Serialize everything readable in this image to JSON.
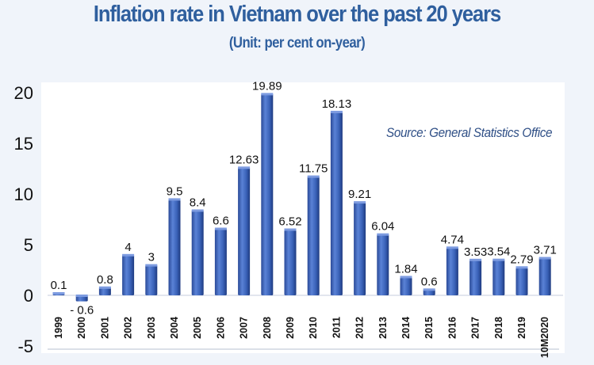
{
  "chart_data": {
    "type": "bar",
    "title": "Inflation rate in Vietnam over the past 20 years",
    "subtitle": "(Unit: per cent on-year)",
    "source": "Source: General Statistics Office",
    "xlabel": "",
    "ylabel": "",
    "ylim": [
      -5,
      20
    ],
    "yticks": [
      20,
      15,
      10,
      5,
      0,
      -5
    ],
    "grid": false,
    "categories": [
      "1999",
      "2000",
      "2001",
      "2002",
      "2003",
      "2004",
      "2005",
      "2006",
      "2007",
      "2008",
      "2009",
      "2010",
      "2011",
      "2012",
      "2013",
      "2014",
      "2015",
      "2016",
      "2017",
      "2018",
      "2019",
      "10M2020"
    ],
    "values": [
      0.1,
      -0.6,
      0.8,
      4,
      3,
      9.5,
      8.4,
      6.6,
      12.63,
      19.89,
      6.52,
      11.75,
      18.13,
      9.21,
      6.04,
      1.84,
      0.6,
      4.74,
      3.53,
      3.54,
      2.79,
      3.71
    ],
    "value_labels": [
      "0.1",
      "- 0.6",
      "0.8",
      "4",
      "3",
      "9.5",
      "8.4",
      "6.6",
      "12.63",
      "19.89",
      "6.52",
      "11.75",
      "18.13",
      "9.21",
      "6.04",
      "1.84",
      "0.6",
      "4.74",
      "3.53",
      "3.54",
      "2.79",
      "3.71"
    ],
    "colors": {
      "bar": "#3a62b8",
      "bar_dark": "#23428a",
      "bar_light": "#6f93dc",
      "title": "#2f5f9e"
    }
  }
}
